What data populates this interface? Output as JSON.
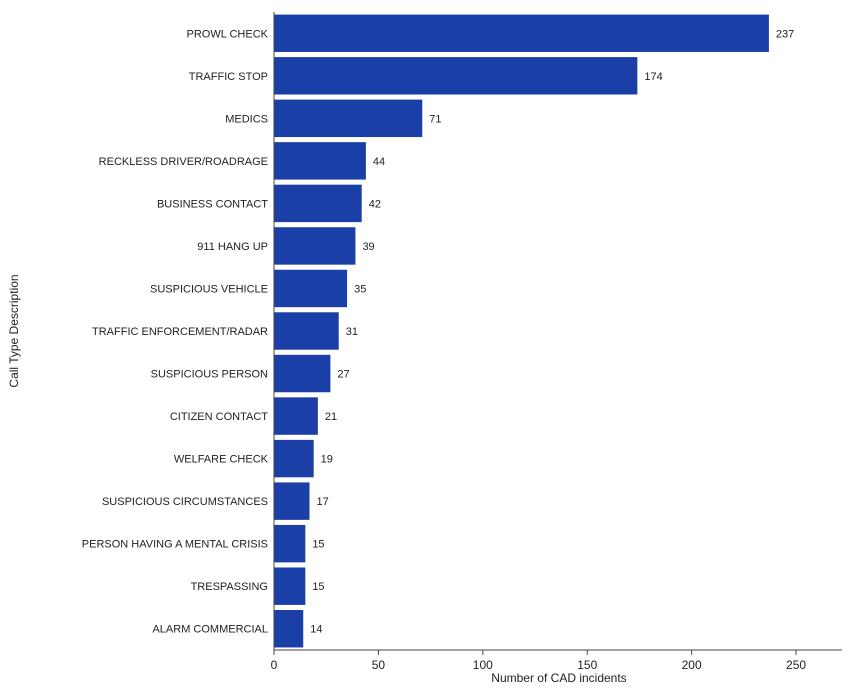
{
  "chart_data": {
    "type": "bar",
    "orientation": "horizontal",
    "categories": [
      "PROWL CHECK",
      "TRAFFIC STOP",
      "MEDICS",
      "RECKLESS DRIVER/ROADRAGE",
      "BUSINESS CONTACT",
      "911 HANG UP",
      "SUSPICIOUS VEHICLE",
      "TRAFFIC ENFORCEMENT/RADAR",
      "SUSPICIOUS PERSON",
      "CITIZEN CONTACT",
      "WELFARE CHECK",
      "SUSPICIOUS CIRCUMSTANCES",
      "PERSON HAVING A MENTAL CRISIS",
      "TRESPASSING",
      "ALARM COMMERCIAL"
    ],
    "values": [
      237,
      174,
      71,
      44,
      42,
      39,
      35,
      31,
      27,
      21,
      19,
      17,
      15,
      15,
      14
    ],
    "xlabel": "Number of CAD incidents",
    "ylabel": "Call Type Description",
    "xlim": [
      0,
      272
    ],
    "xticks": [
      0,
      50,
      100,
      150,
      200,
      250
    ],
    "grid": false,
    "bar_color": "#1a3fa6"
  }
}
